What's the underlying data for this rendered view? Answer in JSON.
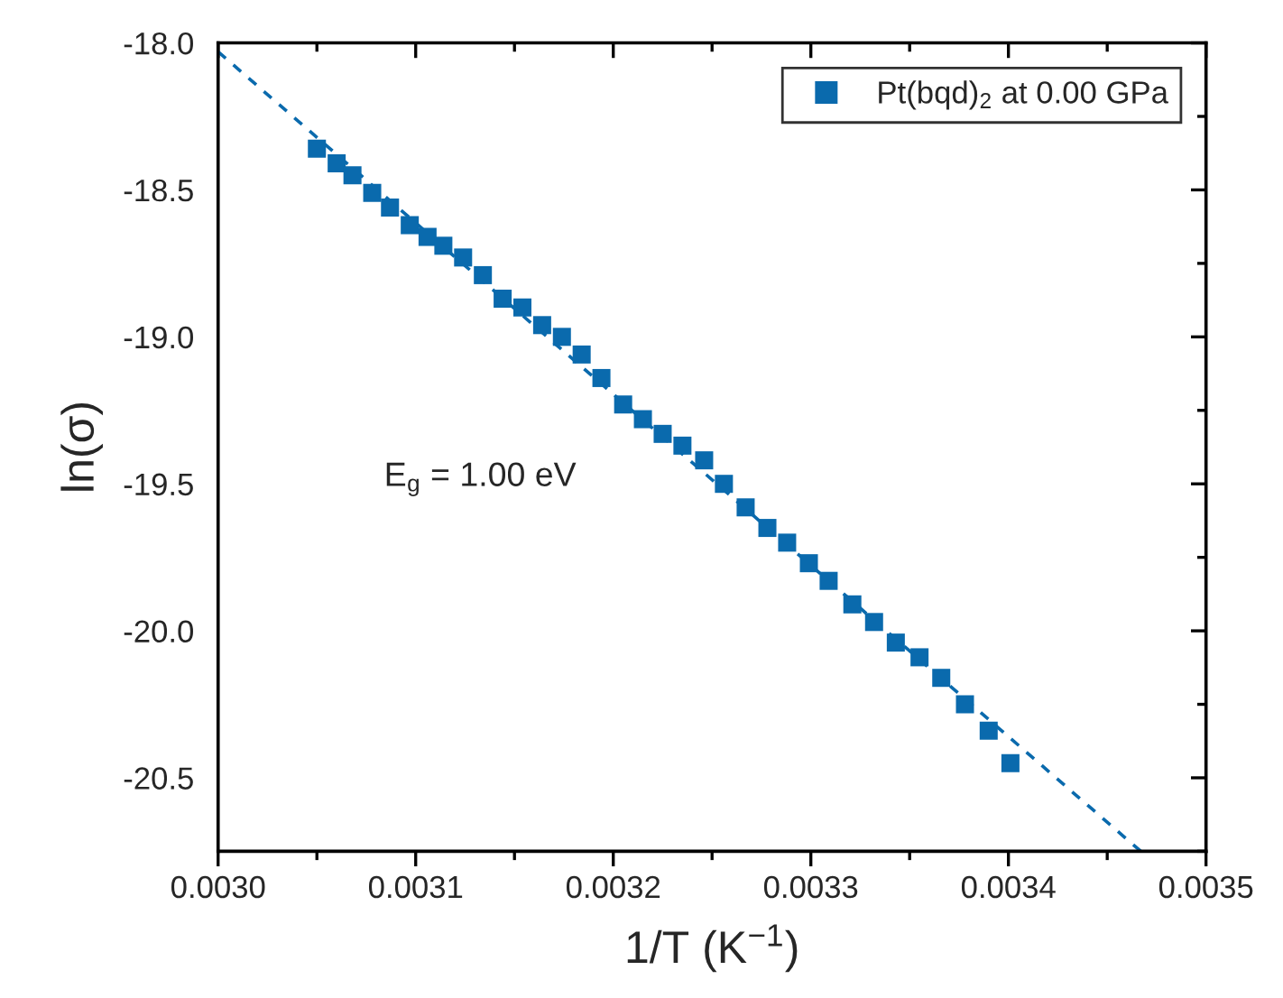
{
  "chart_data": {
    "type": "scatter",
    "xlabel": "1/T (K$^{−1}$)",
    "ylabel": "ln(σ)",
    "xlim": [
      0.003,
      0.0035
    ],
    "ylim": [
      -20.75,
      -18.0
    ],
    "xticks": [
      {
        "value": 0.003,
        "label": "0.0030"
      },
      {
        "value": 0.0031,
        "label": "0.0031"
      },
      {
        "value": 0.0032,
        "label": "0.0032"
      },
      {
        "value": 0.0033,
        "label": "0.0033"
      },
      {
        "value": 0.0034,
        "label": "0.0034"
      },
      {
        "value": 0.0035,
        "label": "0.0035"
      }
    ],
    "yticks": [
      {
        "value": -18.0,
        "label": "-18.0"
      },
      {
        "value": -18.5,
        "label": "-18.5"
      },
      {
        "value": -19.0,
        "label": "-19.0"
      },
      {
        "value": -19.5,
        "label": "-19.5"
      },
      {
        "value": -20.0,
        "label": "-20.0"
      },
      {
        "value": -20.5,
        "label": "-20.5"
      }
    ],
    "grid": false,
    "legend": "top right",
    "annotations": [
      "E$_{g}$ = 1.00 eV"
    ],
    "series": [
      {
        "name": "Pt(bqd)$_{2}$ at 0.00 GPa",
        "marker": "square",
        "color": "#0a6aad",
        "x": [
          0.00305,
          0.00306,
          0.003068,
          0.003078,
          0.003087,
          0.003097,
          0.003106,
          0.003114,
          0.003124,
          0.003134,
          0.003144,
          0.003154,
          0.003164,
          0.003174,
          0.003184,
          0.003194,
          0.003205,
          0.003215,
          0.003225,
          0.003235,
          0.003246,
          0.003256,
          0.003267,
          0.003278,
          0.003288,
          0.003299,
          0.003309,
          0.003321,
          0.003332,
          0.003343,
          0.003355,
          0.003366,
          0.003378,
          0.00339,
          0.003401
        ],
        "values": [
          -18.36,
          -18.41,
          -18.45,
          -18.51,
          -18.56,
          -18.62,
          -18.66,
          -18.69,
          -18.73,
          -18.79,
          -18.87,
          -18.9,
          -18.96,
          -19.0,
          -19.06,
          -19.14,
          -19.23,
          -19.28,
          -19.33,
          -19.37,
          -19.42,
          -19.5,
          -19.58,
          -19.65,
          -19.7,
          -19.77,
          -19.83,
          -19.91,
          -19.97,
          -20.04,
          -20.09,
          -20.16,
          -20.25,
          -20.34,
          -20.45
        ]
      },
      {
        "type": "line",
        "line_style": "dashed",
        "marker": "none",
        "color": "#0a6aad",
        "x": [
          0.003,
          0.003467
        ],
        "values": [
          -18.03,
          -20.75
        ]
      }
    ]
  }
}
